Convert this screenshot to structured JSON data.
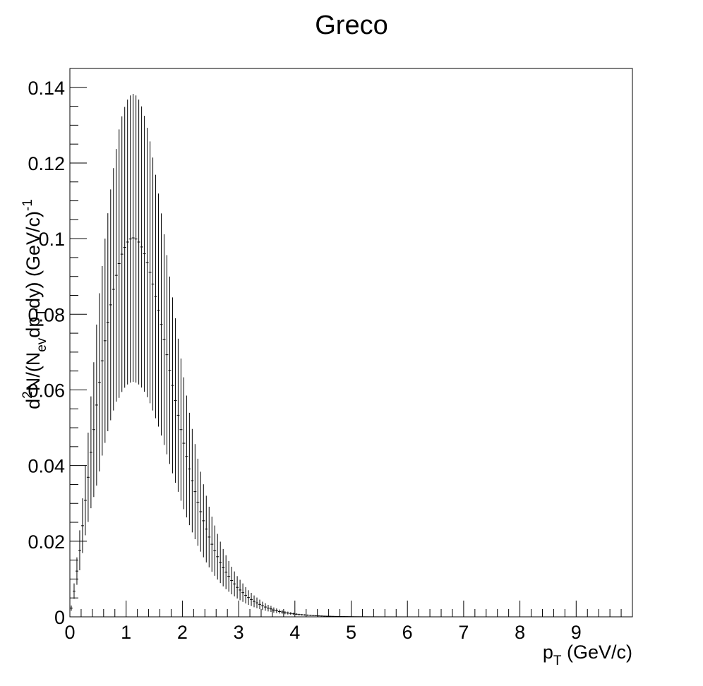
{
  "chart_data": {
    "type": "scatter",
    "title": "Greco",
    "xlabel": {
      "main": "p",
      "sub": "T",
      "rest": " (GeV/c)"
    },
    "ylabel": {
      "a": "d",
      "sup2": "2",
      "b": "N/(N",
      "subev": "ev",
      "c": "dp",
      "subT": "T",
      "d": "dy) (GeV/c)",
      "supm1": "-1"
    },
    "xlim": [
      0,
      10
    ],
    "ylim": [
      0,
      0.145
    ],
    "x_ticks": [
      "0",
      "1",
      "2",
      "3",
      "4",
      "5",
      "6",
      "7",
      "8",
      "9"
    ],
    "y_ticks": [
      "0",
      "0.02",
      "0.04",
      "0.06",
      "0.08",
      "0.1",
      "0.12",
      "0.14"
    ],
    "grid": false,
    "marker": "+ with vertical error bars",
    "series": [
      {
        "bin_width": 0.05,
        "x": [
          0.025,
          0.075,
          0.125,
          0.175,
          0.225,
          0.275,
          0.325,
          0.375,
          0.425,
          0.475,
          0.525,
          0.575,
          0.625,
          0.675,
          0.725,
          0.775,
          0.825,
          0.875,
          0.925,
          0.975,
          1.025,
          1.075,
          1.125,
          1.175,
          1.225,
          1.275,
          1.325,
          1.375,
          1.425,
          1.475,
          1.525,
          1.575,
          1.625,
          1.675,
          1.725,
          1.775,
          1.825,
          1.875,
          1.925,
          1.975,
          2.025,
          2.075,
          2.125,
          2.175,
          2.225,
          2.275,
          2.325,
          2.375,
          2.425,
          2.475,
          2.525,
          2.575,
          2.625,
          2.675,
          2.725,
          2.775,
          2.825,
          2.875,
          2.925,
          2.975,
          3.025,
          3.075,
          3.125,
          3.175,
          3.225,
          3.275,
          3.325,
          3.375,
          3.425,
          3.475,
          3.525,
          3.575,
          3.625,
          3.675,
          3.725,
          3.775,
          3.825,
          3.875,
          3.925,
          3.975,
          4.025,
          4.075,
          4.125,
          4.175,
          4.225,
          4.275,
          4.325,
          4.375,
          4.425,
          4.475,
          4.525,
          4.575,
          4.625,
          4.675,
          4.725,
          4.775,
          4.825,
          4.875,
          4.925,
          4.975,
          5.025,
          5.075,
          5.125,
          5.175,
          5.225,
          5.275,
          5.325,
          5.375,
          5.425,
          5.475,
          5.525,
          5.575,
          5.625,
          5.675,
          5.725,
          5.775,
          5.825,
          5.875,
          5.925,
          5.975,
          6.025,
          6.075,
          6.125,
          6.175,
          6.225,
          6.275,
          6.325,
          6.375,
          6.425,
          6.475,
          6.525,
          6.575
        ],
        "y": [
          0.0023,
          0.0068,
          0.0121,
          0.0176,
          0.0241,
          0.0308,
          0.0369,
          0.0435,
          0.0495,
          0.056,
          0.062,
          0.0677,
          0.073,
          0.0779,
          0.0825,
          0.0866,
          0.0903,
          0.0934,
          0.0959,
          0.0977,
          0.0991,
          0.0999,
          0.1002,
          0.0999,
          0.0991,
          0.0978,
          0.096,
          0.0937,
          0.0911,
          0.088,
          0.0847,
          0.0811,
          0.0773,
          0.0733,
          0.0693,
          0.0652,
          0.0612,
          0.0572,
          0.0533,
          0.0495,
          0.0459,
          0.0424,
          0.0391,
          0.036,
          0.0331,
          0.0303,
          0.0278,
          0.0254,
          0.0232,
          0.0211,
          0.0192,
          0.0175,
          0.0159,
          0.0144,
          0.013,
          0.0118,
          0.0107,
          0.0096,
          0.0087,
          0.0078,
          0.0071,
          0.0064,
          0.0057,
          0.0051,
          0.0046,
          0.0041,
          0.0037,
          0.0033,
          0.0029,
          0.0026,
          0.0023,
          0.0021,
          0.0018,
          0.0016,
          0.0014,
          0.0013,
          0.0011,
          0.001,
          0.0009,
          0.0008,
          0.0007,
          0.0006,
          0.00055,
          0.0005,
          0.00044,
          0.00039,
          0.00034,
          0.0003,
          0.00026,
          0.00023,
          0.0002,
          0.00018,
          0.00016,
          0.00014,
          0.00012,
          0.00011,
          0.0001,
          9e-05,
          8e-05,
          7e-05,
          6e-05,
          5e-05,
          4.5e-05,
          4e-05,
          3.5e-05,
          3e-05,
          2.6e-05,
          2.3e-05,
          2e-05,
          1.8e-05,
          1.6e-05,
          1.4e-05,
          1.2e-05,
          1.1e-05,
          1e-05,
          9e-06,
          8e-06,
          7e-06,
          6e-06,
          5.5e-06,
          5e-06,
          4.5e-06,
          4e-06,
          3.5e-06,
          3e-06,
          2.6e-06,
          2.3e-06,
          2e-06,
          1.8e-06,
          1.6e-06,
          1.4e-06,
          1.2e-06
        ],
        "rel_err": [
          0.3,
          0.3,
          0.3,
          0.3,
          0.3,
          0.3,
          0.32,
          0.34,
          0.36,
          0.38,
          0.38,
          0.37,
          0.37,
          0.37,
          0.37,
          0.37,
          0.37,
          0.38,
          0.38,
          0.38,
          0.38,
          0.38,
          0.38,
          0.38,
          0.38,
          0.38,
          0.38,
          0.38,
          0.38,
          0.38,
          0.38,
          0.38,
          0.38,
          0.38,
          0.38,
          0.38,
          0.38,
          0.38,
          0.38,
          0.38,
          0.38,
          0.38,
          0.38,
          0.38,
          0.38,
          0.38,
          0.38,
          0.38,
          0.38,
          0.38,
          0.38,
          0.38,
          0.38,
          0.38,
          0.38,
          0.38,
          0.38,
          0.38,
          0.38,
          0.38,
          0.38,
          0.38,
          0.38,
          0.38,
          0.38,
          0.38,
          0.38,
          0.38,
          0.38,
          0.38,
          0.38,
          0.38,
          0.38,
          0.38,
          0.38,
          0.38,
          0.38,
          0.38,
          0.38,
          0.38,
          0.38,
          0.38,
          0.38,
          0.38,
          0.38,
          0.38,
          0.38,
          0.38,
          0.38,
          0.38,
          0.38,
          0.38,
          0.38,
          0.38,
          0.38,
          0.38,
          0.38,
          0.38,
          0.38,
          0.38,
          0.38,
          0.38,
          0.38,
          0.38,
          0.38,
          0.38,
          0.38,
          0.38,
          0.38,
          0.38,
          0.38,
          0.38,
          0.38,
          0.38,
          0.38,
          0.38,
          0.38,
          0.38,
          0.38,
          0.38,
          0.38,
          0.38,
          0.38,
          0.38,
          0.38,
          0.38,
          0.38,
          0.38,
          0.38,
          0.38,
          0.38,
          0.38
        ]
      }
    ]
  }
}
